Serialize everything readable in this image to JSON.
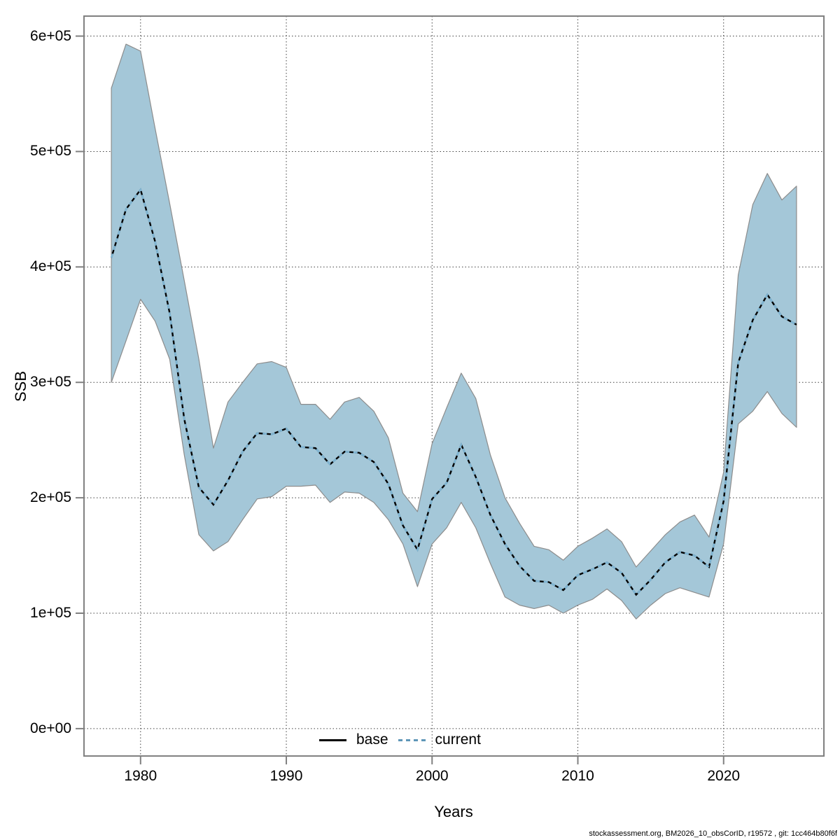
{
  "figure": {
    "ylabel": "SSB",
    "xlabel": "Years",
    "footer": "stockassessment.org, BM2026_10_obsCorID, r19572 , git: 1cc464b80f6f",
    "legend": [
      {
        "label": "base",
        "style": "solid",
        "color": "#000000"
      },
      {
        "label": "current",
        "style": "dashed",
        "color": "#7fb5d3"
      }
    ]
  },
  "chart_data": {
    "type": "line",
    "title": "",
    "xlabel": "Years",
    "ylabel": "SSB",
    "grid": true,
    "legend_position": "bottom",
    "xlim": [
      1976.12,
      2026.88
    ],
    "ylim": [
      -23720,
      617320
    ],
    "x_ticks": [
      {
        "value": 1980,
        "label": "1980"
      },
      {
        "value": 1990,
        "label": "1990"
      },
      {
        "value": 2000,
        "label": "2000"
      },
      {
        "value": 2010,
        "label": "2010"
      },
      {
        "value": 2020,
        "label": "2020"
      }
    ],
    "y_ticks": [
      {
        "value": 0,
        "label": "0e+00"
      },
      {
        "value": 100000,
        "label": "1e+05"
      },
      {
        "value": 200000,
        "label": "2e+05"
      },
      {
        "value": 300000,
        "label": "3e+05"
      },
      {
        "value": 400000,
        "label": "4e+05"
      },
      {
        "value": 500000,
        "label": "5e+05"
      },
      {
        "value": 600000,
        "label": "6e+05"
      }
    ],
    "x": [
      1978,
      1979,
      1980,
      1981,
      1982,
      1983,
      1984,
      1985,
      1986,
      1987,
      1988,
      1989,
      1990,
      1991,
      1992,
      1993,
      1994,
      1995,
      1996,
      1997,
      1998,
      1999,
      2000,
      2001,
      2002,
      2003,
      2004,
      2005,
      2006,
      2007,
      2008,
      2009,
      2010,
      2011,
      2012,
      2013,
      2014,
      2015,
      2016,
      2017,
      2018,
      2019,
      2020,
      2021,
      2022,
      2023,
      2024,
      2025
    ],
    "series": [
      {
        "name": "base",
        "style": "solid",
        "values": [
          408000,
          450000,
          467000,
          422000,
          360000,
          268000,
          209000,
          194000,
          215000,
          240000,
          256000,
          255000,
          260000,
          244000,
          243000,
          229000,
          240000,
          239000,
          231000,
          212000,
          176000,
          155000,
          199000,
          213000,
          246000,
          218000,
          185000,
          160000,
          141000,
          128000,
          127000,
          120000,
          133000,
          138000,
          144000,
          135000,
          116000,
          129000,
          144000,
          153000,
          150000,
          140000,
          197000,
          317000,
          354000,
          376000,
          357000,
          350000
        ]
      },
      {
        "name": "current",
        "style": "dashed",
        "values": [
          408000,
          450000,
          467000,
          422000,
          360000,
          268000,
          209000,
          194000,
          215000,
          240000,
          256000,
          255000,
          260000,
          244000,
          243000,
          229000,
          240000,
          239000,
          231000,
          212000,
          176000,
          155000,
          199000,
          213000,
          246000,
          218000,
          185000,
          160000,
          141000,
          128000,
          127000,
          120000,
          133000,
          138000,
          144000,
          135000,
          116000,
          129000,
          144000,
          153000,
          150000,
          140000,
          197000,
          317000,
          354000,
          376000,
          357000,
          350000
        ]
      }
    ],
    "band": {
      "name": "confidence-interval",
      "lo": [
        300000,
        336000,
        372000,
        353000,
        320000,
        237000,
        168000,
        154000,
        162000,
        181000,
        199000,
        201000,
        210000,
        210000,
        211000,
        196000,
        205000,
        204000,
        196000,
        181000,
        160000,
        123000,
        160000,
        174000,
        196000,
        174000,
        143000,
        114000,
        107000,
        104000,
        107000,
        100000,
        107000,
        112000,
        121000,
        111000,
        95000,
        107000,
        117000,
        122000,
        118000,
        114000,
        160000,
        264000,
        275000,
        292000,
        273000,
        261000
      ],
      "hi": [
        555000,
        593000,
        587000,
        520000,
        455000,
        388000,
        320000,
        243000,
        283000,
        300000,
        316000,
        318000,
        313000,
        281000,
        281000,
        268000,
        283000,
        287000,
        275000,
        252000,
        204000,
        188000,
        247000,
        278000,
        308000,
        286000,
        237000,
        200000,
        178000,
        158000,
        155000,
        146000,
        158000,
        165000,
        173000,
        162000,
        140000,
        154000,
        168000,
        179000,
        185000,
        166000,
        222000,
        393000,
        454000,
        481000,
        458000,
        470000
      ]
    },
    "colors": {
      "band": "#a4c7d8",
      "band_edge": "#8c8c8c",
      "base": "#000000",
      "current": "#7fb5d3",
      "grid": "#404040",
      "frame": "#808080"
    }
  }
}
